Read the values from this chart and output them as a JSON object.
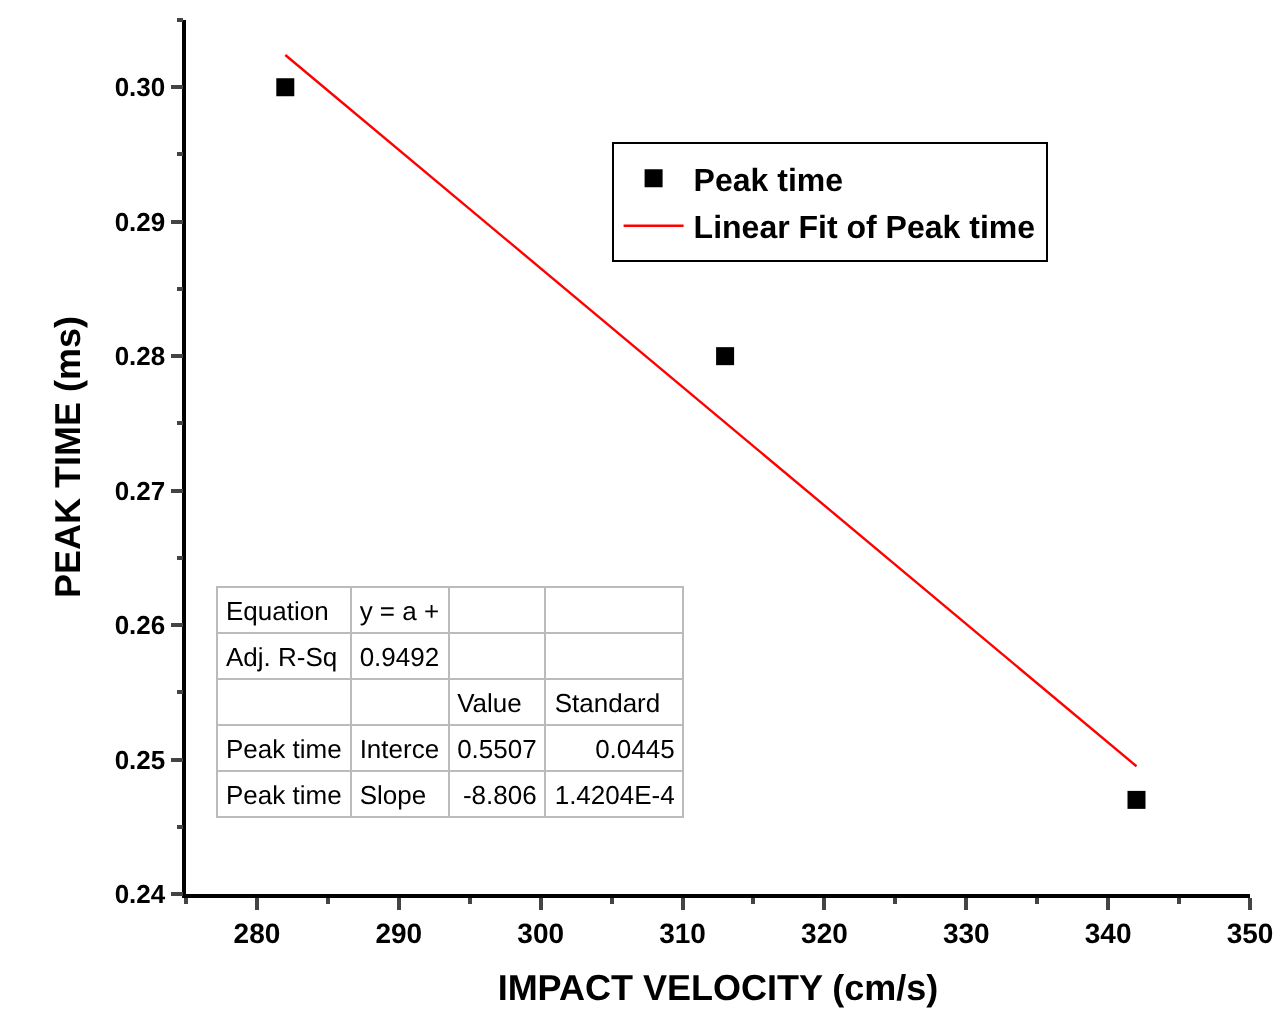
{
  "chart_data": {
    "type": "scatter",
    "xlabel": "IMPACT VELOCITY (cm/s)",
    "ylabel": "PEAK TIME (ms)",
    "xlim": [
      275,
      350
    ],
    "xticks": [
      280,
      290,
      300,
      310,
      320,
      330,
      340,
      350
    ],
    "ylim": [
      0.24,
      0.305
    ],
    "yticks": [
      0.24,
      0.25,
      0.26,
      0.27,
      0.28,
      0.29,
      {
        "value": 0.3,
        "label": "0.30"
      }
    ],
    "legend": "top right",
    "grid": false,
    "series": [
      {
        "name": "Peak time",
        "marker": "square",
        "color": "#000000",
        "x": [
          282,
          313,
          342
        ],
        "values": [
          0.3,
          0.28,
          0.247
        ]
      },
      {
        "name": "Linear Fit of Peak time",
        "type": "line",
        "marker": "none",
        "color": "#ff0000",
        "x": [
          282,
          342
        ],
        "values": [
          0.3024,
          0.2495
        ]
      }
    ],
    "annotations": [
      "Equation",
      "y = a +",
      "Adj. R-Sq",
      "0.9492",
      "Value",
      "Standard",
      "Peak time",
      "Interce",
      "0.5507",
      "0.0445",
      "Peak time",
      "Slope",
      "-8.806",
      "1.4204E-4"
    ]
  }
}
